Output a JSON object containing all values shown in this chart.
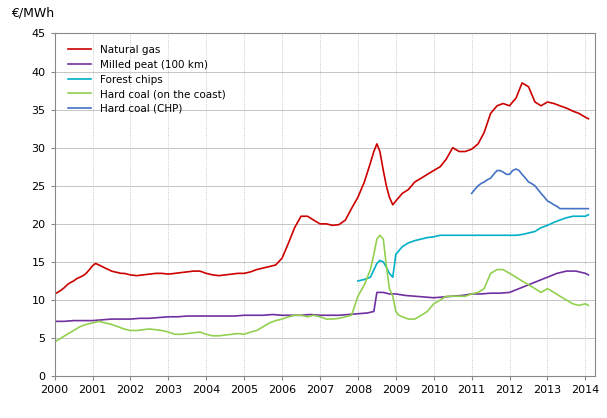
{
  "ylabel": "€/MWh",
  "ylim": [
    0,
    45
  ],
  "yticks": [
    0,
    5,
    10,
    15,
    20,
    25,
    30,
    35,
    40,
    45
  ],
  "xlim": [
    2000,
    2014.25
  ],
  "xticks": [
    2000,
    2001,
    2002,
    2003,
    2004,
    2005,
    2006,
    2007,
    2008,
    2009,
    2010,
    2011,
    2012,
    2013,
    2014
  ],
  "series": {
    "Natural gas": {
      "color": "#cc0000",
      "x": [
        2000.0,
        2000.08,
        2000.17,
        2000.25,
        2000.33,
        2000.42,
        2000.5,
        2000.58,
        2000.67,
        2000.75,
        2000.83,
        2000.92,
        2001.0,
        2001.08,
        2001.17,
        2001.25,
        2001.33,
        2001.42,
        2001.5,
        2001.58,
        2001.67,
        2001.75,
        2001.83,
        2001.92,
        2002.0,
        2002.17,
        2002.33,
        2002.5,
        2002.67,
        2002.83,
        2003.0,
        2003.17,
        2003.33,
        2003.5,
        2003.67,
        2003.83,
        2004.0,
        2004.17,
        2004.33,
        2004.5,
        2004.67,
        2004.83,
        2005.0,
        2005.17,
        2005.33,
        2005.5,
        2005.67,
        2005.83,
        2006.0,
        2006.17,
        2006.33,
        2006.5,
        2006.67,
        2006.83,
        2007.0,
        2007.17,
        2007.33,
        2007.5,
        2007.67,
        2007.83,
        2008.0,
        2008.17,
        2008.33,
        2008.42,
        2008.5,
        2008.58,
        2008.67,
        2008.75,
        2008.83,
        2008.92,
        2009.0,
        2009.17,
        2009.33,
        2009.5,
        2009.67,
        2009.83,
        2010.0,
        2010.17,
        2010.33,
        2010.5,
        2010.67,
        2010.83,
        2011.0,
        2011.17,
        2011.33,
        2011.5,
        2011.67,
        2011.83,
        2012.0,
        2012.08,
        2012.17,
        2012.25,
        2012.33,
        2012.5,
        2012.67,
        2012.83,
        2013.0,
        2013.17,
        2013.33,
        2013.5,
        2013.67,
        2013.83,
        2014.0,
        2014.08
      ],
      "y": [
        10.8,
        11.0,
        11.3,
        11.6,
        12.0,
        12.3,
        12.5,
        12.8,
        13.0,
        13.2,
        13.5,
        14.0,
        14.5,
        14.8,
        14.6,
        14.4,
        14.2,
        14.0,
        13.8,
        13.7,
        13.6,
        13.5,
        13.5,
        13.4,
        13.3,
        13.2,
        13.3,
        13.4,
        13.5,
        13.5,
        13.4,
        13.5,
        13.6,
        13.7,
        13.8,
        13.8,
        13.5,
        13.3,
        13.2,
        13.3,
        13.4,
        13.5,
        13.5,
        13.7,
        14.0,
        14.2,
        14.4,
        14.6,
        15.5,
        17.5,
        19.5,
        21.0,
        21.0,
        20.5,
        20.0,
        20.0,
        19.8,
        19.9,
        20.5,
        22.0,
        23.5,
        25.5,
        28.0,
        29.5,
        30.5,
        29.5,
        27.0,
        25.0,
        23.5,
        22.5,
        23.0,
        24.0,
        24.5,
        25.5,
        26.0,
        26.5,
        27.0,
        27.5,
        28.5,
        30.0,
        29.5,
        29.5,
        29.8,
        30.5,
        32.0,
        34.5,
        35.5,
        35.8,
        35.5,
        36.0,
        36.5,
        37.5,
        38.5,
        38.0,
        36.0,
        35.5,
        36.0,
        35.8,
        35.5,
        35.2,
        34.8,
        34.5,
        34.0,
        33.8
      ]
    },
    "Milled peat (100 km)": {
      "color": "#7030a0",
      "x": [
        2000.0,
        2000.25,
        2000.5,
        2000.75,
        2001.0,
        2001.25,
        2001.5,
        2001.75,
        2002.0,
        2002.25,
        2002.5,
        2002.75,
        2003.0,
        2003.25,
        2003.5,
        2003.75,
        2004.0,
        2004.25,
        2004.5,
        2004.75,
        2005.0,
        2005.25,
        2005.5,
        2005.75,
        2006.0,
        2006.25,
        2006.5,
        2006.75,
        2007.0,
        2007.25,
        2007.5,
        2007.75,
        2008.0,
        2008.25,
        2008.42,
        2008.5,
        2008.67,
        2008.83,
        2009.0,
        2009.25,
        2009.5,
        2009.75,
        2010.0,
        2010.25,
        2010.5,
        2010.75,
        2011.0,
        2011.25,
        2011.5,
        2011.75,
        2012.0,
        2012.25,
        2012.5,
        2012.75,
        2013.0,
        2013.25,
        2013.5,
        2013.75,
        2014.0,
        2014.08
      ],
      "y": [
        7.2,
        7.2,
        7.3,
        7.3,
        7.3,
        7.4,
        7.5,
        7.5,
        7.5,
        7.6,
        7.6,
        7.7,
        7.8,
        7.8,
        7.9,
        7.9,
        7.9,
        7.9,
        7.9,
        7.9,
        8.0,
        8.0,
        8.0,
        8.1,
        8.0,
        8.0,
        8.0,
        8.1,
        8.0,
        8.0,
        8.0,
        8.1,
        8.2,
        8.3,
        8.5,
        11.0,
        11.0,
        10.8,
        10.8,
        10.6,
        10.5,
        10.4,
        10.3,
        10.4,
        10.5,
        10.6,
        10.8,
        10.8,
        10.9,
        10.9,
        11.0,
        11.5,
        12.0,
        12.5,
        13.0,
        13.5,
        13.8,
        13.8,
        13.5,
        13.3
      ]
    },
    "Forest chips": {
      "color": "#00b0c8",
      "x": [
        2008.0,
        2008.17,
        2008.33,
        2008.5,
        2008.58,
        2008.67,
        2008.75,
        2008.83,
        2008.92,
        2009.0,
        2009.17,
        2009.33,
        2009.5,
        2009.67,
        2009.83,
        2010.0,
        2010.17,
        2010.33,
        2010.5,
        2010.67,
        2010.83,
        2011.0,
        2011.17,
        2011.33,
        2011.5,
        2011.67,
        2011.83,
        2012.0,
        2012.17,
        2012.33,
        2012.5,
        2012.67,
        2012.83,
        2013.0,
        2013.17,
        2013.33,
        2013.5,
        2013.67,
        2013.83,
        2014.0,
        2014.08
      ],
      "y": [
        12.5,
        12.7,
        13.0,
        14.8,
        15.2,
        15.0,
        14.3,
        13.5,
        13.0,
        16.0,
        17.0,
        17.5,
        17.8,
        18.0,
        18.2,
        18.3,
        18.5,
        18.5,
        18.5,
        18.5,
        18.5,
        18.5,
        18.5,
        18.5,
        18.5,
        18.5,
        18.5,
        18.5,
        18.5,
        18.6,
        18.8,
        19.0,
        19.5,
        19.8,
        20.2,
        20.5,
        20.8,
        21.0,
        21.0,
        21.0,
        21.2
      ]
    },
    "Hard coal (on the coast)": {
      "color": "#92d050",
      "x": [
        2000.0,
        2000.17,
        2000.33,
        2000.5,
        2000.67,
        2000.83,
        2001.0,
        2001.17,
        2001.33,
        2001.5,
        2001.67,
        2001.83,
        2002.0,
        2002.17,
        2002.33,
        2002.5,
        2002.67,
        2002.83,
        2003.0,
        2003.17,
        2003.33,
        2003.5,
        2003.67,
        2003.83,
        2004.0,
        2004.17,
        2004.33,
        2004.5,
        2004.67,
        2004.83,
        2005.0,
        2005.17,
        2005.33,
        2005.5,
        2005.67,
        2005.83,
        2006.0,
        2006.17,
        2006.33,
        2006.5,
        2006.67,
        2006.83,
        2007.0,
        2007.17,
        2007.33,
        2007.5,
        2007.67,
        2007.83,
        2008.0,
        2008.17,
        2008.33,
        2008.42,
        2008.5,
        2008.58,
        2008.67,
        2008.75,
        2008.83,
        2008.92,
        2009.0,
        2009.08,
        2009.17,
        2009.33,
        2009.5,
        2009.67,
        2009.83,
        2010.0,
        2010.17,
        2010.33,
        2010.5,
        2010.67,
        2010.83,
        2011.0,
        2011.17,
        2011.33,
        2011.5,
        2011.67,
        2011.83,
        2012.0,
        2012.17,
        2012.33,
        2012.5,
        2012.67,
        2012.83,
        2013.0,
        2013.17,
        2013.33,
        2013.5,
        2013.67,
        2013.83,
        2014.0,
        2014.08
      ],
      "y": [
        4.5,
        5.0,
        5.5,
        6.0,
        6.5,
        6.8,
        7.0,
        7.2,
        7.0,
        6.8,
        6.5,
        6.2,
        6.0,
        6.0,
        6.1,
        6.2,
        6.1,
        6.0,
        5.8,
        5.5,
        5.5,
        5.6,
        5.7,
        5.8,
        5.5,
        5.3,
        5.3,
        5.4,
        5.5,
        5.6,
        5.5,
        5.8,
        6.0,
        6.5,
        7.0,
        7.3,
        7.5,
        7.8,
        8.0,
        8.0,
        7.8,
        8.0,
        7.8,
        7.5,
        7.5,
        7.6,
        7.8,
        8.0,
        10.5,
        12.0,
        14.0,
        16.0,
        18.0,
        18.5,
        18.0,
        14.5,
        11.5,
        10.5,
        8.5,
        8.0,
        7.8,
        7.5,
        7.5,
        8.0,
        8.5,
        9.5,
        10.0,
        10.5,
        10.5,
        10.5,
        10.5,
        10.8,
        11.0,
        11.5,
        13.5,
        14.0,
        14.0,
        13.5,
        13.0,
        12.5,
        12.0,
        11.5,
        11.0,
        11.5,
        11.0,
        10.5,
        10.0,
        9.5,
        9.3,
        9.5,
        9.3
      ]
    },
    "Hard coal (CHP)": {
      "color": "#4472c4",
      "x": [
        2011.0,
        2011.08,
        2011.17,
        2011.25,
        2011.33,
        2011.42,
        2011.5,
        2011.58,
        2011.67,
        2011.75,
        2011.83,
        2011.92,
        2012.0,
        2012.08,
        2012.17,
        2012.25,
        2012.33,
        2012.42,
        2012.5,
        2012.58,
        2012.67,
        2012.75,
        2012.83,
        2012.92,
        2013.0,
        2013.08,
        2013.17,
        2013.25,
        2013.33,
        2013.5,
        2013.67,
        2013.83,
        2014.0,
        2014.08
      ],
      "y": [
        24.0,
        24.5,
        25.0,
        25.3,
        25.5,
        25.8,
        26.0,
        26.5,
        27.0,
        27.0,
        26.8,
        26.5,
        26.5,
        27.0,
        27.2,
        27.0,
        26.5,
        26.0,
        25.5,
        25.3,
        25.0,
        24.5,
        24.0,
        23.5,
        23.0,
        22.8,
        22.5,
        22.3,
        22.0,
        22.0,
        22.0,
        22.0,
        22.0,
        22.0
      ]
    }
  }
}
